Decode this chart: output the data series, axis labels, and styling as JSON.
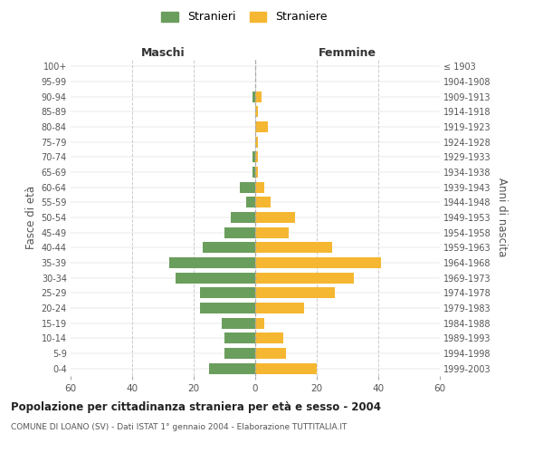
{
  "age_groups": [
    "0-4",
    "5-9",
    "10-14",
    "15-19",
    "20-24",
    "25-29",
    "30-34",
    "35-39",
    "40-44",
    "45-49",
    "50-54",
    "55-59",
    "60-64",
    "65-69",
    "70-74",
    "75-79",
    "80-84",
    "85-89",
    "90-94",
    "95-99",
    "100+"
  ],
  "birth_years": [
    "1999-2003",
    "1994-1998",
    "1989-1993",
    "1984-1988",
    "1979-1983",
    "1974-1978",
    "1969-1973",
    "1964-1968",
    "1959-1963",
    "1954-1958",
    "1949-1953",
    "1944-1948",
    "1939-1943",
    "1934-1938",
    "1929-1933",
    "1924-1928",
    "1919-1923",
    "1914-1918",
    "1909-1913",
    "1904-1908",
    "≤ 1903"
  ],
  "maschi": [
    15,
    10,
    10,
    11,
    18,
    18,
    26,
    28,
    17,
    10,
    8,
    3,
    5,
    1,
    1,
    0,
    0,
    0,
    1,
    0,
    0
  ],
  "femmine": [
    20,
    10,
    9,
    3,
    16,
    26,
    32,
    41,
    25,
    11,
    13,
    5,
    3,
    1,
    1,
    1,
    4,
    1,
    2,
    0,
    0
  ],
  "maschi_color": "#6a9e5c",
  "femmine_color": "#f5b731",
  "background_color": "#ffffff",
  "grid_color": "#cccccc",
  "title": "Popolazione per cittadinanza straniera per età e sesso - 2004",
  "subtitle": "COMUNE DI LOANO (SV) - Dati ISTAT 1° gennaio 2004 - Elaborazione TUTTITALIA.IT",
  "legend_stranieri": "Stranieri",
  "legend_straniere": "Straniere",
  "label_maschi": "Maschi",
  "label_femmine": "Femmine",
  "ylabel_left": "Fasce di età",
  "ylabel_right": "Anni di nascita",
  "xlim": 60,
  "center_line_color": "#aaaaaa"
}
